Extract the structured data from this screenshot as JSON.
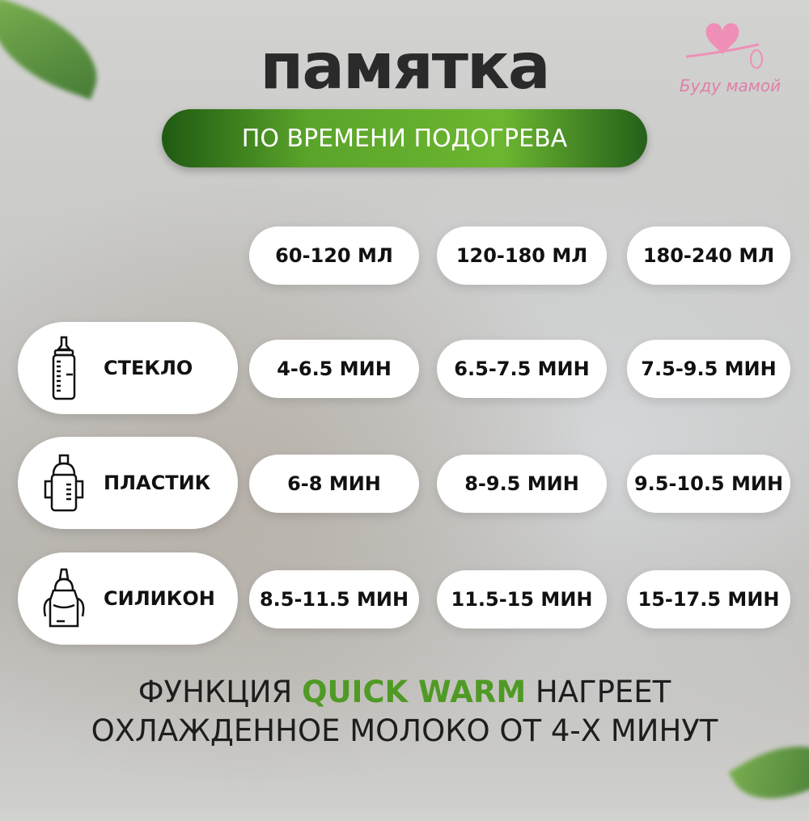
{
  "title": "памятка",
  "subtitle": "ПО ВРЕМЕНИ ПОДОГРЕВА",
  "logo": {
    "text": "Буду мамой",
    "color": "#e88ab3"
  },
  "columns": [
    "60-120 МЛ",
    "120-180 МЛ",
    "180-240 МЛ"
  ],
  "rows": [
    {
      "material": "СТЕКЛО",
      "icon": "glass-bottle-icon",
      "values": [
        "4-6.5 МИН",
        "6.5-7.5 МИН",
        "7.5-9.5 МИН"
      ]
    },
    {
      "material": "ПЛАСТИК",
      "icon": "plastic-sippy-cup-icon",
      "values": [
        "6-8 МИН",
        "8-9.5 МИН",
        "9.5-10.5 МИН"
      ]
    },
    {
      "material": "СИЛИКОН",
      "icon": "silicone-bottle-icon",
      "values": [
        "8.5-11.5 МИН",
        "11.5-15 МИН",
        "15-17.5 МИН"
      ]
    }
  ],
  "footer": {
    "line1_pre": "ФУНКЦИЯ ",
    "line1_highlight": "QUICK WARM",
    "line1_post": " НАГРЕЕТ",
    "line2": "ОХЛАЖДЕННОЕ МОЛОКО ОТ 4-Х МИНУТ"
  },
  "colors": {
    "accent": "#5aa42a",
    "text": "#1e1e1e"
  }
}
